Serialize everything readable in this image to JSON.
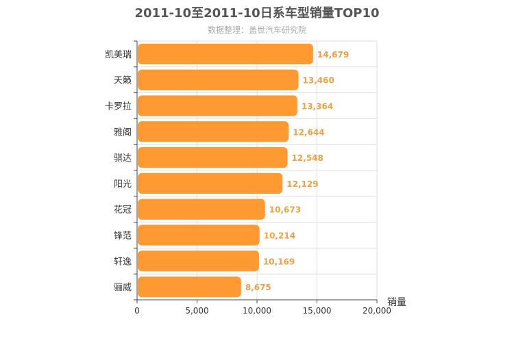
{
  "chart_data": {
    "type": "bar",
    "orientation": "horizontal",
    "title": "2011-10至2011-10日系车型销量TOP10",
    "subtitle": "数据整理：盖世汽车研究院",
    "xlabel": "销量",
    "ylabel": "",
    "categories": [
      "凯美瑞",
      "天籁",
      "卡罗拉",
      "雅阁",
      "骐达",
      "阳光",
      "花冠",
      "锋范",
      "轩逸",
      "骊威"
    ],
    "values": [
      14679,
      13460,
      13364,
      12644,
      12548,
      12129,
      10673,
      10214,
      10169,
      8675
    ],
    "value_labels": [
      "14,679",
      "13,460",
      "13,364",
      "12,644",
      "12,548",
      "12,129",
      "10,673",
      "10,214",
      "10,169",
      "8,675"
    ],
    "xlim": [
      0,
      20000
    ],
    "xticks": [
      0,
      5000,
      10000,
      15000,
      20000
    ],
    "xtick_labels": [
      "0",
      "5,000",
      "10,000",
      "15,000",
      "20,000"
    ],
    "grid": true,
    "legend": "none",
    "colors": {
      "bar": "#ff9a33",
      "value_label": "#f0a040",
      "title": "#555555",
      "subtitle": "#aaaaaa",
      "axis": "#444444",
      "grid": "#dddddd"
    }
  }
}
